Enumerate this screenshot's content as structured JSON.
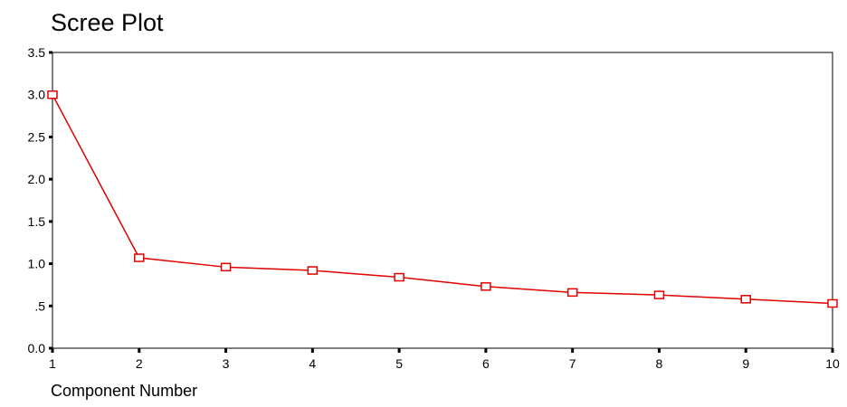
{
  "chart_data": {
    "type": "line",
    "title": "Scree Plot",
    "xlabel": "Component Number",
    "ylabel": "",
    "x": [
      1,
      2,
      3,
      4,
      5,
      6,
      7,
      8,
      9,
      10
    ],
    "xticks": [
      "1",
      "2",
      "3",
      "4",
      "5",
      "6",
      "7",
      "8",
      "9",
      "10"
    ],
    "yticks": [
      "0.0",
      ".5",
      "1.0",
      "1.5",
      "2.0",
      "2.5",
      "3.0",
      "3.5"
    ],
    "ytick_values": [
      0,
      0.5,
      1.0,
      1.5,
      2.0,
      2.5,
      3.0,
      3.5
    ],
    "series": [
      {
        "values": [
          3.0,
          1.07,
          0.96,
          0.92,
          0.84,
          0.73,
          0.66,
          0.63,
          0.58,
          0.53
        ],
        "color": "#e00000"
      }
    ],
    "xlim": [
      1,
      10
    ],
    "ylim": [
      0,
      3.5
    ],
    "grid": false,
    "legend": "none",
    "marker": "open-square"
  }
}
